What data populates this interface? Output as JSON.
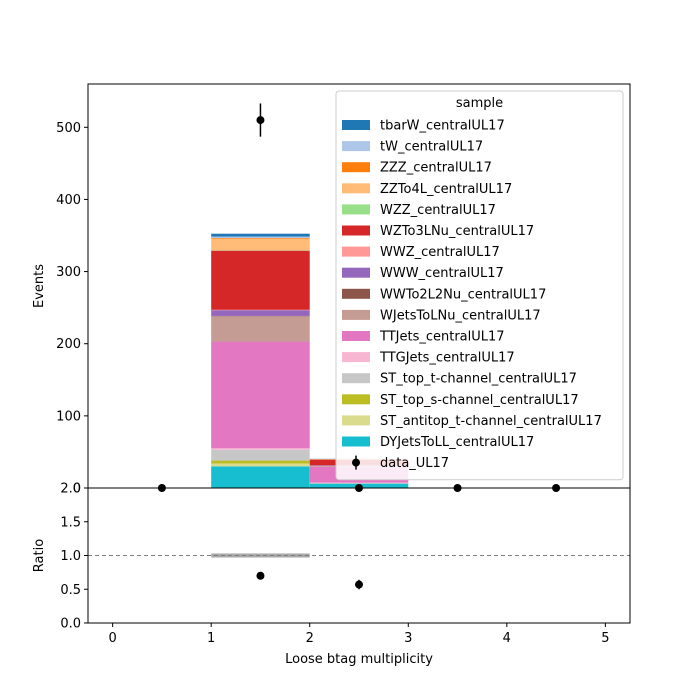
{
  "chart_data": {
    "type": "bar",
    "stacked": true,
    "xlabel": "Loose btag multiplicity",
    "ylabel_top": "Events",
    "ylabel_bottom": "Ratio",
    "bin_edges": [
      0,
      1,
      2,
      3,
      4,
      5
    ],
    "xlim": [
      -0.25,
      5.25
    ],
    "ylim_top": [
      0,
      560
    ],
    "ylim_bottom": [
      0,
      2.0
    ],
    "xticks": [
      "0",
      "1",
      "2",
      "3",
      "4",
      "5"
    ],
    "yticks_top": [
      "0",
      "100",
      "200",
      "300",
      "400",
      "500"
    ],
    "yticks_bottom": [
      "0.0",
      "0.5",
      "1.0",
      "1.5",
      "2.0"
    ],
    "legend": {
      "title": "sample",
      "location": "top-right"
    },
    "series": [
      {
        "name": "DYJetsToLL_centralUL17",
        "color": "#17becf",
        "values": [
          0,
          30,
          6,
          0,
          0
        ]
      },
      {
        "name": "ST_antitop_t-channel_centralUL17",
        "color": "#dbdb8d",
        "values": [
          0,
          4,
          0,
          0,
          0
        ]
      },
      {
        "name": "ST_top_s-channel_centralUL17",
        "color": "#bcbd22",
        "values": [
          0,
          4,
          0,
          0,
          0
        ]
      },
      {
        "name": "ST_top_t-channel_centralUL17",
        "color": "#c7c7c7",
        "values": [
          0,
          15,
          1,
          0,
          0
        ]
      },
      {
        "name": "TTGJets_centralUL17",
        "color": "#f7b6d2",
        "values": [
          0,
          2,
          0.5,
          0,
          0
        ]
      },
      {
        "name": "TTJets_centralUL17",
        "color": "#e377c2",
        "values": [
          0,
          148,
          22,
          0,
          0
        ]
      },
      {
        "name": "WJetsToLNu_centralUL17",
        "color": "#c49c94",
        "values": [
          0,
          35,
          1,
          0,
          0
        ]
      },
      {
        "name": "WWTo2L2Nu_centralUL17",
        "color": "#8c564b",
        "values": [
          0,
          0.5,
          0.2,
          0,
          0
        ]
      },
      {
        "name": "WWW_centralUL17",
        "color": "#9467bd",
        "values": [
          0,
          8,
          0.5,
          0,
          0
        ]
      },
      {
        "name": "WWZ_centralUL17",
        "color": "#ff9896",
        "values": [
          0,
          0.5,
          0.2,
          0,
          0
        ]
      },
      {
        "name": "WZTo3LNu_centralUL17",
        "color": "#d62728",
        "values": [
          0,
          82,
          8,
          0,
          0
        ]
      },
      {
        "name": "WZZ_centralUL17",
        "color": "#98df8a",
        "values": [
          0,
          0.5,
          0.2,
          0,
          0
        ]
      },
      {
        "name": "ZZTo4L_centralUL17",
        "color": "#ffbb78",
        "values": [
          0,
          16,
          0.5,
          0,
          0
        ]
      },
      {
        "name": "ZZZ_centralUL17",
        "color": "#ff7f0e",
        "values": [
          0,
          1,
          0.1,
          0,
          0
        ]
      },
      {
        "name": "tW_centralUL17",
        "color": "#aec7e8",
        "values": [
          0,
          2,
          0.1,
          0,
          0
        ]
      },
      {
        "name": "tbarW_centralUL17",
        "color": "#1f77b4",
        "values": [
          0,
          4,
          0.2,
          0,
          0
        ]
      }
    ],
    "data": {
      "name": "data_UL17",
      "x": [
        0.5,
        1.5,
        2.5,
        3.5,
        4.5
      ],
      "y": [
        0,
        510,
        0,
        0,
        0
      ],
      "yerr": [
        0,
        23,
        0,
        0,
        0
      ]
    },
    "ratio": {
      "reference": 1.0,
      "x": [
        1.5,
        2.5
      ],
      "y": [
        0.7,
        0.57
      ],
      "yerr": [
        0.03,
        0.07
      ],
      "mc_unc_band": {
        "x0": 1,
        "x1": 2,
        "half_width": 0.03
      }
    }
  }
}
